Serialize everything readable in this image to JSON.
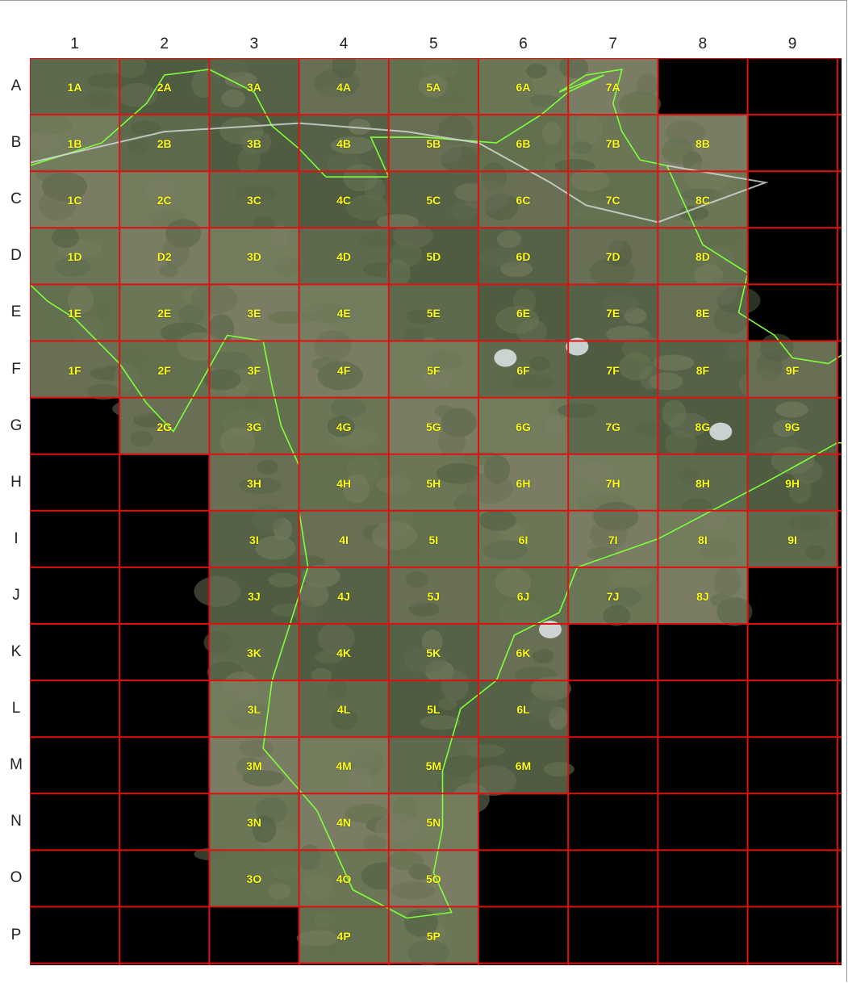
{
  "columns": [
    "1",
    "2",
    "3",
    "4",
    "5",
    "6",
    "7",
    "8",
    "9"
  ],
  "rows": [
    "A",
    "B",
    "C",
    "D",
    "E",
    "F",
    "G",
    "H",
    "I",
    "J",
    "K",
    "L",
    "M",
    "N",
    "O",
    "P"
  ],
  "tiles": [
    {
      "row": "A",
      "cols": [
        1,
        2,
        3,
        4,
        5,
        6,
        7
      ]
    },
    {
      "row": "B",
      "cols": [
        1,
        2,
        3,
        4,
        5,
        6,
        7,
        8
      ]
    },
    {
      "row": "C",
      "cols": [
        1,
        2,
        3,
        4,
        5,
        6,
        7,
        8
      ]
    },
    {
      "row": "D",
      "cols": [
        1,
        2,
        3,
        4,
        5,
        6,
        7,
        8
      ]
    },
    {
      "row": "E",
      "cols": [
        1,
        2,
        3,
        4,
        5,
        6,
        7,
        8
      ]
    },
    {
      "row": "F",
      "cols": [
        1,
        2,
        3,
        4,
        5,
        6,
        7,
        8,
        9
      ]
    },
    {
      "row": "G",
      "cols": [
        2,
        3,
        4,
        5,
        6,
        7,
        8,
        9
      ]
    },
    {
      "row": "H",
      "cols": [
        3,
        4,
        5,
        6,
        7,
        8,
        9
      ]
    },
    {
      "row": "I",
      "cols": [
        3,
        4,
        5,
        6,
        7,
        8,
        9
      ]
    },
    {
      "row": "J",
      "cols": [
        3,
        4,
        5,
        6,
        7,
        8
      ]
    },
    {
      "row": "K",
      "cols": [
        3,
        4,
        5,
        6
      ]
    },
    {
      "row": "L",
      "cols": [
        3,
        4,
        5,
        6
      ]
    },
    {
      "row": "M",
      "cols": [
        3,
        4,
        5,
        6
      ]
    },
    {
      "row": "N",
      "cols": [
        3,
        4,
        5
      ]
    },
    {
      "row": "O",
      "cols": [
        3,
        4,
        5
      ]
    },
    {
      "row": "P",
      "cols": [
        4,
        5
      ]
    }
  ],
  "cell_labels": [
    {
      "row": "A",
      "col": 1,
      "text": "1A"
    },
    {
      "row": "A",
      "col": 2,
      "text": "2A"
    },
    {
      "row": "A",
      "col": 3,
      "text": "3A"
    },
    {
      "row": "A",
      "col": 4,
      "text": "4A"
    },
    {
      "row": "A",
      "col": 5,
      "text": "5A"
    },
    {
      "row": "A",
      "col": 6,
      "text": "6A"
    },
    {
      "row": "A",
      "col": 7,
      "text": "7A"
    },
    {
      "row": "B",
      "col": 1,
      "text": "1B"
    },
    {
      "row": "B",
      "col": 2,
      "text": "2B"
    },
    {
      "row": "B",
      "col": 3,
      "text": "3B"
    },
    {
      "row": "B",
      "col": 4,
      "text": "4B"
    },
    {
      "row": "B",
      "col": 5,
      "text": "5B"
    },
    {
      "row": "B",
      "col": 6,
      "text": "6B"
    },
    {
      "row": "B",
      "col": 7,
      "text": "7B"
    },
    {
      "row": "B",
      "col": 8,
      "text": "8B"
    },
    {
      "row": "C",
      "col": 1,
      "text": "1C"
    },
    {
      "row": "C",
      "col": 2,
      "text": "2C"
    },
    {
      "row": "C",
      "col": 3,
      "text": "3C"
    },
    {
      "row": "C",
      "col": 4,
      "text": "4C"
    },
    {
      "row": "C",
      "col": 5,
      "text": "5C"
    },
    {
      "row": "C",
      "col": 6,
      "text": "6C"
    },
    {
      "row": "C",
      "col": 7,
      "text": "7C"
    },
    {
      "row": "C",
      "col": 8,
      "text": "8C"
    },
    {
      "row": "D",
      "col": 1,
      "text": "1D"
    },
    {
      "row": "D",
      "col": 2,
      "text": "D2"
    },
    {
      "row": "D",
      "col": 3,
      "text": "3D"
    },
    {
      "row": "D",
      "col": 4,
      "text": "4D"
    },
    {
      "row": "D",
      "col": 5,
      "text": "5D"
    },
    {
      "row": "D",
      "col": 6,
      "text": "6D"
    },
    {
      "row": "D",
      "col": 7,
      "text": "7D"
    },
    {
      "row": "D",
      "col": 8,
      "text": "8D"
    },
    {
      "row": "E",
      "col": 1,
      "text": "1E"
    },
    {
      "row": "E",
      "col": 2,
      "text": "2E"
    },
    {
      "row": "E",
      "col": 3,
      "text": "3E"
    },
    {
      "row": "E",
      "col": 4,
      "text": "4E"
    },
    {
      "row": "E",
      "col": 5,
      "text": "5E"
    },
    {
      "row": "E",
      "col": 6,
      "text": "6E"
    },
    {
      "row": "E",
      "col": 7,
      "text": "7E"
    },
    {
      "row": "E",
      "col": 8,
      "text": "8E"
    },
    {
      "row": "F",
      "col": 1,
      "text": "1F"
    },
    {
      "row": "F",
      "col": 2,
      "text": "2F"
    },
    {
      "row": "F",
      "col": 3,
      "text": "3F"
    },
    {
      "row": "F",
      "col": 4,
      "text": "4F"
    },
    {
      "row": "F",
      "col": 5,
      "text": "5F"
    },
    {
      "row": "F",
      "col": 6,
      "text": "6F"
    },
    {
      "row": "F",
      "col": 7,
      "text": "7F"
    },
    {
      "row": "F",
      "col": 8,
      "text": "8F"
    },
    {
      "row": "F",
      "col": 9,
      "text": "9F"
    },
    {
      "row": "G",
      "col": 2,
      "text": "2G"
    },
    {
      "row": "G",
      "col": 3,
      "text": "3G"
    },
    {
      "row": "G",
      "col": 4,
      "text": "4G"
    },
    {
      "row": "G",
      "col": 5,
      "text": "5G"
    },
    {
      "row": "G",
      "col": 6,
      "text": "6G"
    },
    {
      "row": "G",
      "col": 7,
      "text": "7G"
    },
    {
      "row": "G",
      "col": 8,
      "text": "8G"
    },
    {
      "row": "G",
      "col": 9,
      "text": "9G"
    },
    {
      "row": "H",
      "col": 3,
      "text": "3H"
    },
    {
      "row": "H",
      "col": 4,
      "text": "4H"
    },
    {
      "row": "H",
      "col": 5,
      "text": "5H"
    },
    {
      "row": "H",
      "col": 6,
      "text": "6H"
    },
    {
      "row": "H",
      "col": 7,
      "text": "7H"
    },
    {
      "row": "H",
      "col": 8,
      "text": "8H"
    },
    {
      "row": "H",
      "col": 9,
      "text": "9H"
    },
    {
      "row": "I",
      "col": 3,
      "text": "3I"
    },
    {
      "row": "I",
      "col": 4,
      "text": "4I"
    },
    {
      "row": "I",
      "col": 5,
      "text": "5I"
    },
    {
      "row": "I",
      "col": 6,
      "text": "6I"
    },
    {
      "row": "I",
      "col": 7,
      "text": "7I"
    },
    {
      "row": "I",
      "col": 8,
      "text": "8I"
    },
    {
      "row": "I",
      "col": 9,
      "text": "9I"
    },
    {
      "row": "J",
      "col": 3,
      "text": "3J"
    },
    {
      "row": "J",
      "col": 4,
      "text": "4J"
    },
    {
      "row": "J",
      "col": 5,
      "text": "5J"
    },
    {
      "row": "J",
      "col": 6,
      "text": "6J"
    },
    {
      "row": "J",
      "col": 7,
      "text": "7J"
    },
    {
      "row": "J",
      "col": 8,
      "text": "8J"
    },
    {
      "row": "K",
      "col": 3,
      "text": "3K"
    },
    {
      "row": "K",
      "col": 4,
      "text": "4K"
    },
    {
      "row": "K",
      "col": 5,
      "text": "5K"
    },
    {
      "row": "K",
      "col": 6,
      "text": "6K"
    },
    {
      "row": "L",
      "col": 3,
      "text": "3L"
    },
    {
      "row": "L",
      "col": 4,
      "text": "4L"
    },
    {
      "row": "L",
      "col": 5,
      "text": "5L"
    },
    {
      "row": "L",
      "col": 6,
      "text": "6L"
    },
    {
      "row": "M",
      "col": 3,
      "text": "3M"
    },
    {
      "row": "M",
      "col": 4,
      "text": "4M"
    },
    {
      "row": "M",
      "col": 5,
      "text": "5M"
    },
    {
      "row": "M",
      "col": 6,
      "text": "6M"
    },
    {
      "row": "N",
      "col": 3,
      "text": "3N"
    },
    {
      "row": "N",
      "col": 4,
      "text": "4N"
    },
    {
      "row": "N",
      "col": 5,
      "text": "5N"
    },
    {
      "row": "O",
      "col": 3,
      "text": "3O"
    },
    {
      "row": "O",
      "col": 4,
      "text": "4O"
    },
    {
      "row": "O",
      "col": 5,
      "text": "5O"
    },
    {
      "row": "P",
      "col": 4,
      "text": "4P"
    },
    {
      "row": "P",
      "col": 5,
      "text": "5P"
    }
  ],
  "colors": {
    "grid_line": "#e01010",
    "cell_label": "#ffff1e",
    "background": "#000000",
    "boundary": "#7fff3a",
    "imagery": [
      "#5d6a4e",
      "#6a7656",
      "#556247",
      "#747c5e",
      "#63704f",
      "#4f5c42",
      "#7a7d63",
      "#686f55"
    ]
  }
}
